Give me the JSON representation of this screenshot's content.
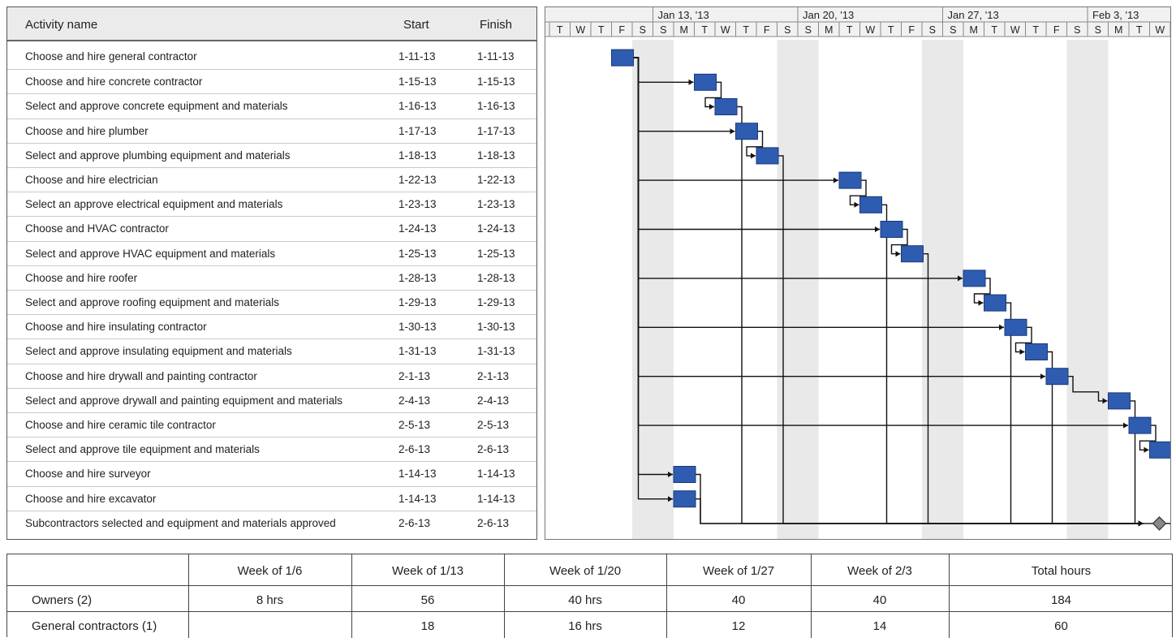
{
  "table": {
    "headers": {
      "name": "Activity name",
      "start": "Start",
      "finish": "Finish"
    },
    "rows": [
      {
        "name": "Choose and hire general contractor",
        "start": "1-11-13",
        "finish": "1-11-13"
      },
      {
        "name": "Choose and hire concrete contractor",
        "start": "1-15-13",
        "finish": "1-15-13"
      },
      {
        "name": "Select and approve concrete equipment and materials",
        "start": "1-16-13",
        "finish": "1-16-13"
      },
      {
        "name": "Choose and hire plumber",
        "start": "1-17-13",
        "finish": "1-17-13"
      },
      {
        "name": "Select and approve plumbing equipment and materials",
        "start": "1-18-13",
        "finish": "1-18-13"
      },
      {
        "name": "Choose and hire electrician",
        "start": "1-22-13",
        "finish": "1-22-13"
      },
      {
        "name": "Select an approve electrical equipment and materials",
        "start": "1-23-13",
        "finish": "1-23-13"
      },
      {
        "name": "Choose and HVAC contractor",
        "start": "1-24-13",
        "finish": "1-24-13"
      },
      {
        "name": "Select and approve HVAC equipment and materials",
        "start": "1-25-13",
        "finish": "1-25-13"
      },
      {
        "name": "Choose and hire roofer",
        "start": "1-28-13",
        "finish": "1-28-13"
      },
      {
        "name": "Select and approve roofing equipment and materials",
        "start": "1-29-13",
        "finish": "1-29-13"
      },
      {
        "name": "Choose and hire insulating contractor",
        "start": "1-30-13",
        "finish": "1-30-13"
      },
      {
        "name": "Select and approve insulating equipment and materials",
        "start": "1-31-13",
        "finish": "1-31-13"
      },
      {
        "name": "Choose and hire drywall and painting contractor",
        "start": "2-1-13",
        "finish": "2-1-13"
      },
      {
        "name": "Select and approve drywall and painting equipment and materials",
        "start": "2-4-13",
        "finish": "2-4-13"
      },
      {
        "name": "Choose and hire ceramic tile contractor",
        "start": "2-5-13",
        "finish": "2-5-13"
      },
      {
        "name": "Select and approve tile equipment and materials",
        "start": "2-6-13",
        "finish": "2-6-13"
      },
      {
        "name": "Choose and hire surveyor",
        "start": "1-14-13",
        "finish": "1-14-13"
      },
      {
        "name": "Choose and hire excavator",
        "start": "1-14-13",
        "finish": "1-14-13"
      },
      {
        "name": "Subcontractors selected and equipment and materials approved",
        "start": "2-6-13",
        "finish": "2-6-13"
      }
    ]
  },
  "chart_data": {
    "type": "gantt",
    "timescale": {
      "weeks": [
        "Jan 13, '13",
        "Jan 20, '13",
        "Jan 27, '13",
        "Feb 3, '13"
      ],
      "days": [
        "T",
        "W",
        "T",
        "F",
        "S",
        "S",
        "M",
        "T",
        "W",
        "T",
        "F",
        "S",
        "S",
        "M",
        "T",
        "W",
        "T",
        "F",
        "S",
        "S",
        "M",
        "T",
        "W",
        "T",
        "F",
        "S",
        "S",
        "M",
        "T",
        "W",
        "T"
      ],
      "first_day": "1-8-13",
      "last_day": "2-7-13"
    },
    "tasks": [
      {
        "row": 0,
        "start": "1-11-13",
        "finish": "1-11-13"
      },
      {
        "row": 1,
        "start": "1-15-13",
        "finish": "1-15-13"
      },
      {
        "row": 2,
        "start": "1-16-13",
        "finish": "1-16-13"
      },
      {
        "row": 3,
        "start": "1-17-13",
        "finish": "1-17-13"
      },
      {
        "row": 4,
        "start": "1-18-13",
        "finish": "1-18-13"
      },
      {
        "row": 5,
        "start": "1-22-13",
        "finish": "1-22-13"
      },
      {
        "row": 6,
        "start": "1-23-13",
        "finish": "1-23-13"
      },
      {
        "row": 7,
        "start": "1-24-13",
        "finish": "1-24-13"
      },
      {
        "row": 8,
        "start": "1-25-13",
        "finish": "1-25-13"
      },
      {
        "row": 9,
        "start": "1-28-13",
        "finish": "1-28-13"
      },
      {
        "row": 10,
        "start": "1-29-13",
        "finish": "1-29-13"
      },
      {
        "row": 11,
        "start": "1-30-13",
        "finish": "1-30-13"
      },
      {
        "row": 12,
        "start": "1-31-13",
        "finish": "1-31-13"
      },
      {
        "row": 13,
        "start": "2-1-13",
        "finish": "2-1-13"
      },
      {
        "row": 14,
        "start": "2-4-13",
        "finish": "2-4-13"
      },
      {
        "row": 15,
        "start": "2-5-13",
        "finish": "2-5-13"
      },
      {
        "row": 16,
        "start": "2-6-13",
        "finish": "2-6-13"
      },
      {
        "row": 17,
        "start": "1-14-13",
        "finish": "1-14-13"
      },
      {
        "row": 18,
        "start": "1-14-13",
        "finish": "1-14-13"
      },
      {
        "row": 19,
        "start": "2-6-13",
        "finish": "2-6-13",
        "milestone": true
      }
    ],
    "dependencies": [
      [
        0,
        1
      ],
      [
        0,
        3
      ],
      [
        0,
        5
      ],
      [
        0,
        7
      ],
      [
        0,
        9
      ],
      [
        0,
        11
      ],
      [
        0,
        13
      ],
      [
        0,
        15
      ],
      [
        0,
        17
      ],
      [
        0,
        18
      ],
      [
        1,
        2
      ],
      [
        3,
        4
      ],
      [
        5,
        6
      ],
      [
        7,
        8
      ],
      [
        9,
        10
      ],
      [
        11,
        12
      ],
      [
        13,
        14
      ],
      [
        15,
        16
      ],
      [
        17,
        19
      ],
      [
        18,
        19
      ],
      [
        2,
        19
      ],
      [
        4,
        19
      ],
      [
        6,
        19
      ],
      [
        8,
        19
      ],
      [
        10,
        19
      ],
      [
        12,
        19
      ],
      [
        14,
        19
      ],
      [
        16,
        19
      ]
    ],
    "colors": {
      "bar": "#2e5cb0",
      "weekend": "#e9e9e9",
      "milestone": "#888888"
    }
  },
  "hours": {
    "headers": [
      "",
      "Week of 1/6",
      "Week of 1/13",
      "Week of 1/20",
      "Week of 1/27",
      "Week of 2/3",
      "Total hours"
    ],
    "rows": [
      {
        "label": "Owners (2)",
        "values": [
          "8 hrs",
          "56",
          "40 hrs",
          "40",
          "40",
          "184"
        ]
      },
      {
        "label": "General contractors (1)",
        "values": [
          "",
          "18",
          "16 hrs",
          "12",
          "14",
          "60"
        ]
      }
    ]
  }
}
